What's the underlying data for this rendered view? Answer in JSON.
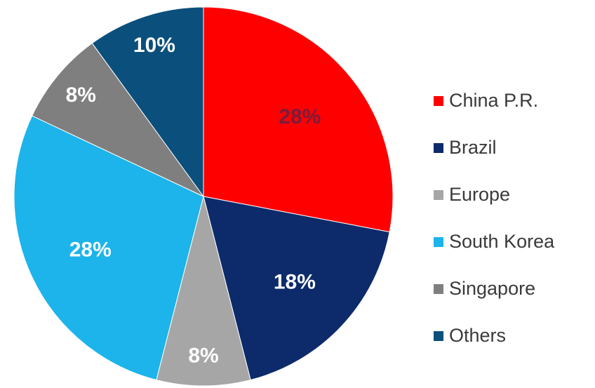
{
  "chart_data": {
    "type": "pie",
    "categories": [
      "China P.R.",
      "Brazil",
      "Europe",
      "South Korea",
      "Singapore",
      "Others"
    ],
    "values": [
      28,
      18,
      8,
      28,
      8,
      10
    ],
    "labels": [
      "28%",
      "18%",
      "8%",
      "28%",
      "8%",
      "10%"
    ],
    "colors": [
      "#ff0000",
      "#0d2b6b",
      "#a6a6a6",
      "#1cb4ea",
      "#7f7f7f",
      "#0b4f7c"
    ],
    "label_colors": [
      "#7a1c3c",
      "#ffffff",
      "#ffffff",
      "#ffffff",
      "#ffffff",
      "#ffffff"
    ],
    "start_angle_deg": 0,
    "direction": "clockwise",
    "legend_position": "right"
  }
}
